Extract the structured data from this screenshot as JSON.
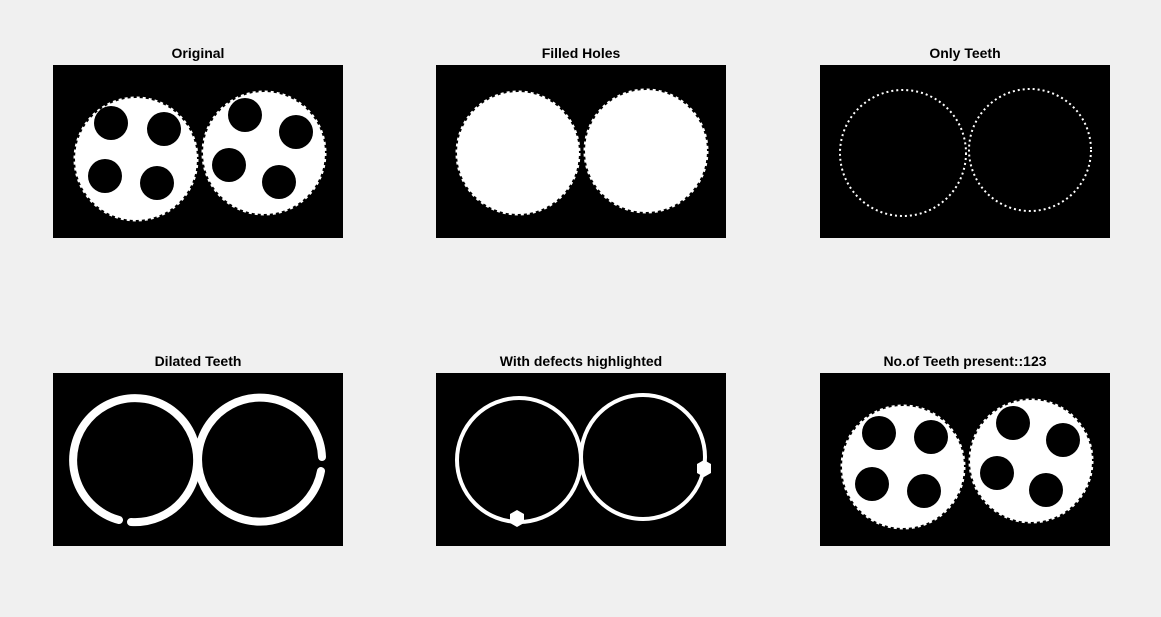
{
  "figure": {
    "background": "#f0f0f0",
    "subplots": [
      {
        "title": "Original"
      },
      {
        "title": "Filled Holes"
      },
      {
        "title": "Only Teeth"
      },
      {
        "title": "Dilated Teeth"
      },
      {
        "title": "With defects highlighted"
      },
      {
        "title": "No.of Teeth present::123"
      }
    ]
  },
  "colors": {
    "image_background": "#000000",
    "foreground": "#ffffff"
  }
}
